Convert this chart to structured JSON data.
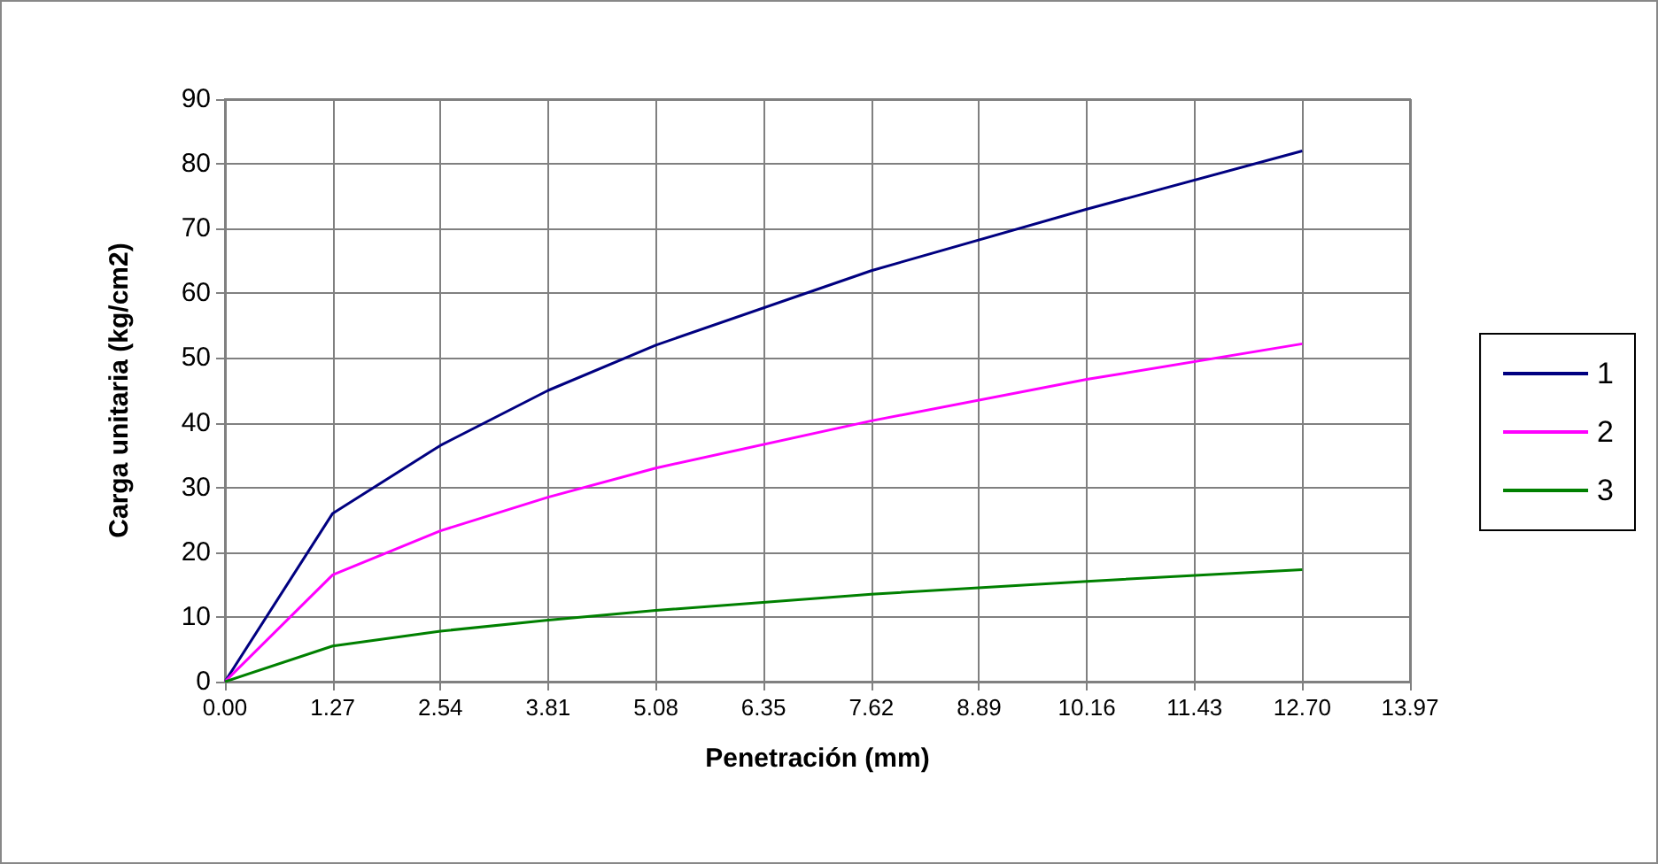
{
  "chart_data": {
    "type": "line",
    "xlabel": "Penetración (mm)",
    "ylabel": "Carga unitaria (kg/cm2)",
    "x": [
      0,
      1.27,
      2.54,
      3.81,
      5.08,
      7.62,
      10.16,
      12.7
    ],
    "series": [
      {
        "name": "1",
        "color": "#000080",
        "values": [
          0,
          26,
          36.5,
          45,
          52,
          63.5,
          73,
          82
        ]
      },
      {
        "name": "2",
        "color": "#ff00ff",
        "values": [
          0,
          16.5,
          23.3,
          28.5,
          33,
          40.3,
          46.7,
          52.2
        ]
      },
      {
        "name": "3",
        "color": "#008000",
        "values": [
          0,
          5.5,
          7.8,
          9.5,
          11,
          13.5,
          15.5,
          17.3
        ]
      }
    ],
    "xlim": [
      0,
      13.97
    ],
    "xticks": [
      {
        "value": 0,
        "label": "0.00"
      },
      {
        "value": 1.27,
        "label": "1.27"
      },
      {
        "value": 2.54,
        "label": "2.54"
      },
      {
        "value": 3.81,
        "label": "3.81"
      },
      {
        "value": 5.08,
        "label": "5.08"
      },
      {
        "value": 6.35,
        "label": "6.35"
      },
      {
        "value": 7.62,
        "label": "7.62"
      },
      {
        "value": 8.89,
        "label": "8.89"
      },
      {
        "value": 10.16,
        "label": "10.16"
      },
      {
        "value": 11.43,
        "label": "11.43"
      },
      {
        "value": 12.7,
        "label": "12.70"
      },
      {
        "value": 13.97,
        "label": "13.97"
      }
    ],
    "ylim": [
      0,
      90
    ],
    "yticks": [
      0,
      10,
      20,
      30,
      40,
      50,
      60,
      70,
      80,
      90
    ],
    "grid": true,
    "legend": "right",
    "marker": "none",
    "line_style": "solid"
  }
}
